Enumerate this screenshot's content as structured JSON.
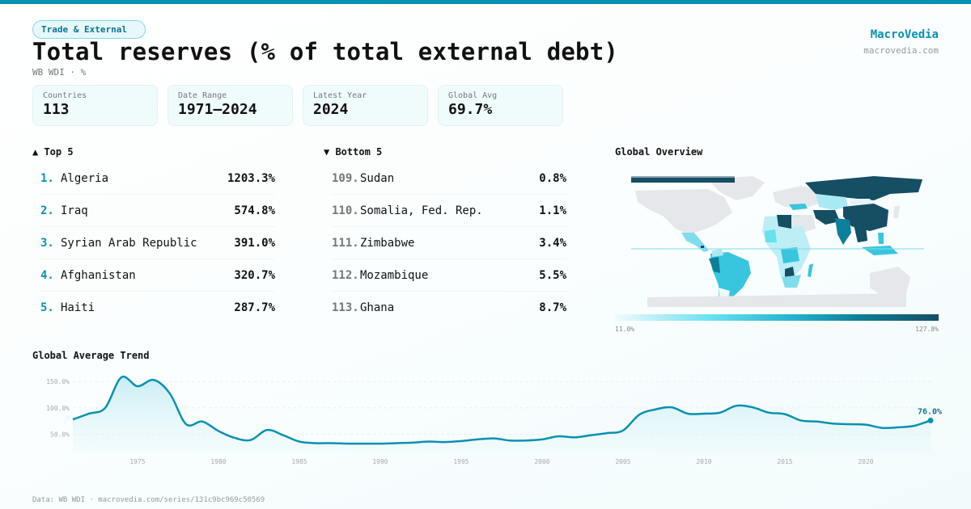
{
  "header": {
    "category_badge": "Trade & External",
    "title": "Total reserves (% of total external debt)",
    "subtitle": "WB WDI · %"
  },
  "brand": {
    "name": "MacroVedia",
    "url": "macrovedia.com"
  },
  "stats": [
    {
      "label": "Countries",
      "value": "113"
    },
    {
      "label": "Date Range",
      "value": "1971–2024"
    },
    {
      "label": "Latest Year",
      "value": "2024"
    },
    {
      "label": "Global Avg",
      "value": "69.7%"
    }
  ],
  "top5": {
    "heading": "▲ Top 5",
    "items": [
      {
        "rank": "1.",
        "name": "Algeria",
        "value": "1203.3%"
      },
      {
        "rank": "2.",
        "name": "Iraq",
        "value": "574.8%"
      },
      {
        "rank": "3.",
        "name": "Syrian Arab Republic",
        "value": "391.0%"
      },
      {
        "rank": "4.",
        "name": "Afghanistan",
        "value": "320.7%"
      },
      {
        "rank": "5.",
        "name": "Haiti",
        "value": "287.7%"
      }
    ]
  },
  "bottom5": {
    "heading": "▼ Bottom 5",
    "items": [
      {
        "rank": "109.",
        "name": "Sudan",
        "value": "0.8%"
      },
      {
        "rank": "110.",
        "name": "Somalia, Fed. Rep.",
        "value": "1.1%"
      },
      {
        "rank": "111.",
        "name": "Zimbabwe",
        "value": "3.4%"
      },
      {
        "rank": "112.",
        "name": "Mozambique",
        "value": "5.5%"
      },
      {
        "rank": "113.",
        "name": "Ghana",
        "value": "8.7%"
      }
    ]
  },
  "map": {
    "title": "Global Overview",
    "legend_min": "11.0%",
    "legend_max": "127.8%",
    "colors": {
      "no_data": "#e5e7eb",
      "low": "#f0fbfd",
      "mid": "#22b3cf",
      "high": "#164e63"
    }
  },
  "trend": {
    "title": "Global Average Trend",
    "last_label": "76.0%",
    "line_color": "#0891b2"
  },
  "footer": {
    "text": "Data: WB WDI · macrovedia.com/series/131c9bc969c50569"
  },
  "chart_data": {
    "type": "area",
    "title": "Global Average Trend",
    "xlabel": "",
    "ylabel": "",
    "x": [
      1971,
      1972,
      1973,
      1974,
      1975,
      1976,
      1977,
      1978,
      1979,
      1980,
      1981,
      1982,
      1983,
      1984,
      1985,
      1986,
      1987,
      1988,
      1989,
      1990,
      1991,
      1992,
      1993,
      1994,
      1995,
      1996,
      1997,
      1998,
      1999,
      2000,
      2001,
      2002,
      2003,
      2004,
      2005,
      2006,
      2007,
      2008,
      2009,
      2010,
      2011,
      2012,
      2013,
      2014,
      2015,
      2016,
      2017,
      2018,
      2019,
      2020,
      2021,
      2022,
      2023,
      2024
    ],
    "series": [
      {
        "name": "Global Average",
        "values": [
          78,
          89,
          100,
          158,
          141,
          153,
          127,
          69,
          74,
          56,
          43,
          39,
          58,
          48,
          36,
          33,
          33,
          32,
          32,
          32,
          33,
          34,
          36,
          35,
          37,
          40,
          42,
          38,
          38,
          40,
          46,
          44,
          48,
          52,
          57,
          87,
          97,
          101,
          89,
          89,
          91,
          104,
          101,
          91,
          88,
          76,
          74,
          70,
          69,
          68,
          62,
          63,
          66,
          76
        ]
      }
    ],
    "yticks": [
      "50.0%",
      "100.0%",
      "150.0%"
    ],
    "xticks": [
      "1975",
      "1980",
      "1985",
      "1990",
      "1995",
      "2000",
      "2005",
      "2010",
      "2015",
      "2020"
    ],
    "ylim": [
      0,
      170
    ],
    "grid": true,
    "annotations": [
      {
        "x": 2024,
        "y": 76.0,
        "text": "76.0%"
      }
    ]
  }
}
